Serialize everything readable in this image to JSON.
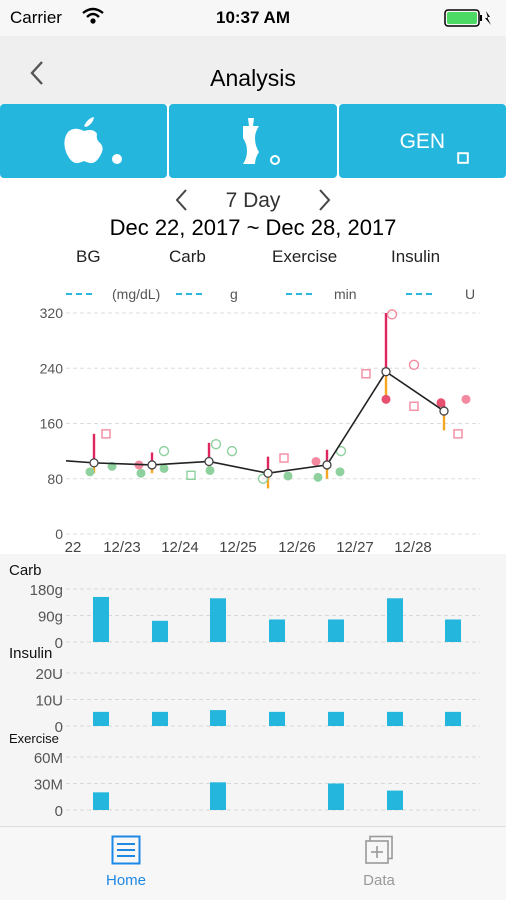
{
  "status": {
    "carrier": "Carrier",
    "time": "10:37 AM"
  },
  "nav": {
    "title": "Analysis"
  },
  "tabs": {
    "gen_label": "GEN"
  },
  "period": {
    "label": "7 Day",
    "date_range": "Dec 22, 2017 ~ Dec 28, 2017"
  },
  "legend": {
    "bg": "BG",
    "bg_unit": "(mg/dL)",
    "carb": "Carb",
    "carb_unit": "g",
    "exercise": "Exercise",
    "exercise_unit": "min",
    "insulin": "Insulin",
    "insulin_unit": "U"
  },
  "colors": {
    "accent": "#25b6de",
    "bg_line": "#e0265f",
    "low": "#f5a623",
    "green": "#8fd19e",
    "pink": "#f48aa0"
  },
  "chart_data": [
    {
      "type": "line",
      "ylim": [
        0,
        320
      ],
      "yticks": [
        "0",
        "80",
        "160",
        "240",
        "320"
      ],
      "xticks": [
        "22",
        "12/23",
        "12/24",
        "12/25",
        "12/26",
        "12/27",
        "12/28"
      ],
      "series": [
        {
          "values": [
            103,
            100,
            105,
            88,
            100,
            235,
            178
          ]
        }
      ],
      "ranges_high": [
        145,
        118,
        132,
        112,
        122,
        320,
        190
      ],
      "ranges_low": [
        88,
        88,
        92,
        66,
        80,
        190,
        150
      ]
    },
    {
      "type": "bar",
      "title": "Carb",
      "yticks": [
        "0",
        "90g",
        "180g"
      ],
      "ylim": [
        0,
        200
      ],
      "values": [
        170,
        80,
        165,
        85,
        85,
        165,
        85
      ]
    },
    {
      "type": "bar",
      "title": "Insulin",
      "yticks": [
        "0",
        "10U",
        "20U"
      ],
      "ylim": [
        0,
        30
      ],
      "values": [
        8,
        8,
        9,
        8,
        8,
        8,
        8
      ]
    },
    {
      "type": "bar",
      "title": "Exercise",
      "yticks": [
        "0",
        "30M",
        "60M"
      ],
      "ylim": [
        0,
        90
      ],
      "values": [
        30,
        0,
        47,
        0,
        45,
        33,
        0
      ]
    }
  ],
  "tabbar": {
    "home": "Home",
    "data": "Data"
  }
}
